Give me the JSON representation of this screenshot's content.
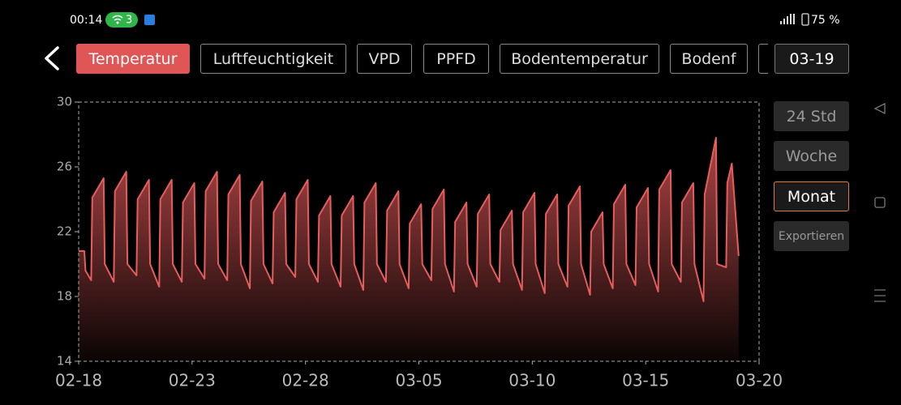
{
  "status_bar": {
    "time": "00:14",
    "wifi_count": "3",
    "battery": "75 %"
  },
  "tabs": [
    "Temperatur",
    "Luftfeuchtigkeit",
    "VPD",
    "PPFD",
    "Bodentemperatur",
    "Bodenf"
  ],
  "date": "03-19",
  "range_buttons": [
    "24 Std",
    "Woche",
    "Monat"
  ],
  "export": "Exportieren",
  "chart_data": {
    "type": "area",
    "color": "#e85c5c",
    "x": [
      0,
      0.25,
      0.3,
      0.55,
      0.6,
      1.1,
      1.15,
      1.55,
      1.6,
      2.1,
      2.15,
      2.55,
      2.6,
      3.1,
      3.15,
      3.55,
      3.6,
      4.1,
      4.15,
      4.55,
      4.6,
      5.1,
      5.15,
      5.55,
      5.6,
      6.1,
      6.15,
      6.55,
      6.6,
      7.1,
      7.15,
      7.55,
      7.6,
      8.1,
      8.15,
      8.55,
      8.6,
      9.1,
      9.15,
      9.55,
      9.6,
      10.1,
      10.15,
      10.55,
      10.6,
      11.1,
      11.15,
      11.55,
      11.6,
      12.1,
      12.15,
      12.55,
      12.6,
      13.1,
      13.15,
      13.55,
      13.6,
      14.1,
      14.15,
      14.55,
      14.6,
      15.1,
      15.15,
      15.55,
      15.6,
      16.1,
      16.15,
      16.55,
      16.6,
      17.1,
      17.15,
      17.55,
      17.6,
      18.1,
      18.15,
      18.55,
      18.6,
      19.1,
      19.15,
      19.55,
      19.6,
      20.1,
      20.15,
      20.55,
      20.6,
      21.1,
      21.15,
      21.55,
      21.6,
      22.1,
      22.15,
      22.55,
      22.6,
      23.1,
      23.15,
      23.55,
      23.6,
      24.1,
      24.15,
      24.55,
      24.6,
      25.1,
      25.15,
      25.55,
      25.6,
      26.1,
      26.15,
      26.55,
      26.6,
      27.1,
      27.15,
      27.55,
      27.6,
      28.1,
      28.15,
      28.55,
      28.6,
      28.8,
      29.1
    ],
    "values": [
      20.8,
      20.8,
      19.6,
      19.0,
      24.1,
      25.3,
      20.0,
      18.9,
      24.5,
      25.7,
      20.0,
      19.3,
      24.0,
      25.2,
      20.0,
      18.6,
      24.0,
      25.2,
      20.0,
      18.9,
      23.8,
      25.0,
      20.0,
      19.1,
      24.5,
      25.7,
      20.0,
      19.0,
      24.3,
      25.5,
      20.0,
      18.5,
      23.9,
      25.1,
      20.0,
      18.8,
      23.2,
      24.4,
      20.0,
      19.2,
      24.0,
      25.2,
      20.0,
      18.9,
      23.0,
      24.2,
      20.0,
      18.6,
      23.0,
      24.2,
      20.0,
      18.4,
      23.8,
      25.0,
      20.0,
      18.9,
      23.3,
      24.5,
      20.0,
      18.5,
      22.5,
      23.7,
      20.0,
      19.0,
      23.4,
      24.6,
      20.0,
      18.3,
      22.6,
      23.8,
      20.0,
      18.6,
      23.1,
      24.3,
      20.0,
      18.9,
      22.1,
      23.3,
      20.0,
      18.4,
      23.2,
      24.4,
      20.0,
      18.2,
      23.1,
      24.3,
      20.0,
      18.6,
      23.6,
      24.8,
      20.0,
      18.1,
      22.0,
      23.2,
      20.0,
      18.5,
      23.7,
      24.9,
      20.0,
      18.7,
      23.5,
      24.7,
      20.0,
      18.3,
      24.6,
      25.8,
      20.0,
      18.9,
      23.8,
      25.0,
      20.0,
      17.7,
      24.3,
      27.8,
      20.0,
      19.8,
      25.0,
      26.2,
      20.5
    ],
    "xlim": [
      0,
      30
    ],
    "xticks": [
      {
        "value": 0,
        "label": "02-18"
      },
      {
        "value": 5,
        "label": "02-23"
      },
      {
        "value": 10,
        "label": "02-28"
      },
      {
        "value": 15,
        "label": "03-05"
      },
      {
        "value": 20,
        "label": "03-10"
      },
      {
        "value": 25,
        "label": "03-15"
      },
      {
        "value": 30,
        "label": "03-20"
      }
    ],
    "ylim": [
      14,
      30
    ],
    "yticks": [
      14,
      18,
      22,
      26,
      30
    ]
  }
}
